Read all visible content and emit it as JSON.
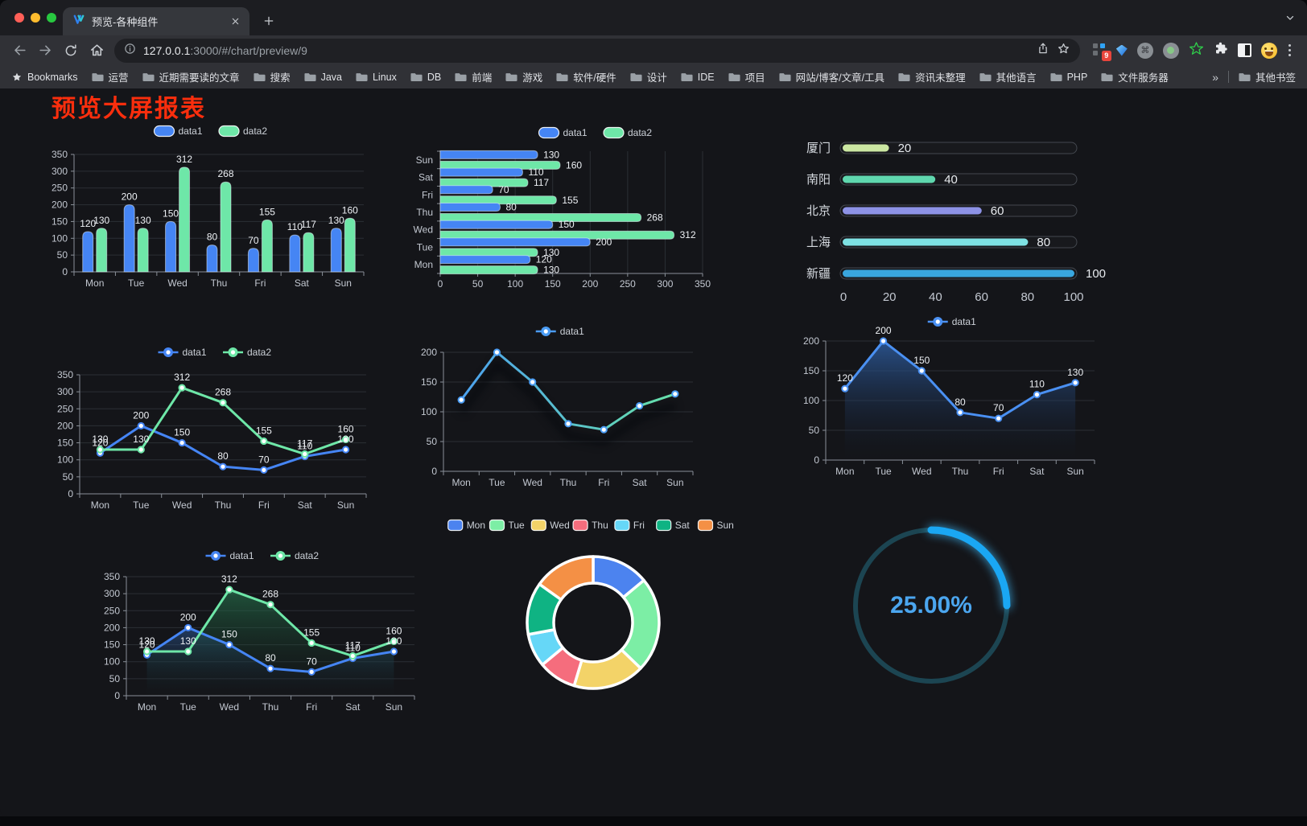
{
  "browser": {
    "tab_title": "预览-各种组件",
    "url_host": "127.0.0.1",
    "url_path": ":3000/#/chart/preview/9",
    "bookmarks_label": "Bookmarks",
    "bookmarks": [
      "运营",
      "近期需要读的文章",
      "搜索",
      "Java",
      "Linux",
      "DB",
      "前端",
      "游戏",
      "软件/硬件",
      "设计",
      "IDE",
      "项目",
      "网站/博客/文章/工具",
      "资讯未整理",
      "其他语言",
      "PHP",
      "文件服务器"
    ],
    "other_bookmarks_label": "其他书签",
    "extension_badge": "9"
  },
  "icons": {
    "overflow": "»",
    "cmd": "⌘"
  },
  "page": {
    "title": "预览大屏报表",
    "title_color": "#fa2e0d",
    "background": "#141519"
  },
  "chart_data": [
    {
      "id": "bar-vertical",
      "type": "bar",
      "categories": [
        "Mon",
        "Tue",
        "Wed",
        "Thu",
        "Fri",
        "Sat",
        "Sun"
      ],
      "series": [
        {
          "name": "data1",
          "color": "#4585f4",
          "values": [
            120,
            200,
            150,
            80,
            70,
            110,
            130
          ]
        },
        {
          "name": "data2",
          "color": "#6ee7a8",
          "values": [
            130,
            130,
            312,
            268,
            155,
            117,
            160
          ]
        }
      ],
      "ylim": [
        0,
        350
      ],
      "ytick_step": 50,
      "value_labels": true,
      "grid": true,
      "legend_position": "top"
    },
    {
      "id": "bar-horizontal",
      "type": "bar-horizontal",
      "categories": [
        "Mon",
        "Tue",
        "Wed",
        "Thu",
        "Fri",
        "Sat",
        "Sun"
      ],
      "series": [
        {
          "name": "data1",
          "color": "#4585f4",
          "values": [
            120,
            200,
            150,
            80,
            70,
            110,
            130
          ]
        },
        {
          "name": "data2",
          "color": "#6ee7a8",
          "values": [
            130,
            130,
            312,
            268,
            155,
            117,
            160
          ]
        }
      ],
      "xlim": [
        0,
        350
      ],
      "xtick_step": 50,
      "value_labels": true,
      "grid": true,
      "legend_position": "top"
    },
    {
      "id": "progress-bars",
      "type": "progress",
      "rows": [
        {
          "label": "厦门",
          "value": 20,
          "color": "#cbe7a2"
        },
        {
          "label": "南阳",
          "value": 40,
          "color": "#5fd7ae"
        },
        {
          "label": "北京",
          "value": 60,
          "color": "#8d92e6"
        },
        {
          "label": "上海",
          "value": 80,
          "color": "#7ee1e3"
        },
        {
          "label": "新疆",
          "value": 100,
          "color": "#39a6de"
        }
      ],
      "max": 100,
      "xticks": [
        0,
        20,
        40,
        60,
        80,
        100
      ]
    },
    {
      "id": "line-dual",
      "type": "line",
      "categories": [
        "Mon",
        "Tue",
        "Wed",
        "Thu",
        "Fri",
        "Sat",
        "Sun"
      ],
      "series": [
        {
          "name": "data1",
          "color": "#4585f4",
          "values": [
            120,
            200,
            150,
            80,
            70,
            110,
            130
          ]
        },
        {
          "name": "data2",
          "color": "#6ee7a8",
          "values": [
            130,
            130,
            312,
            268,
            155,
            117,
            160
          ]
        }
      ],
      "ylim": [
        0,
        350
      ],
      "ytick_step": 50,
      "value_labels": true,
      "grid": true,
      "legend_position": "top"
    },
    {
      "id": "line-gradient",
      "type": "line",
      "categories": [
        "Mon",
        "Tue",
        "Wed",
        "Thu",
        "Fri",
        "Sat",
        "Sun"
      ],
      "series": [
        {
          "name": "data1",
          "color": "#4a9cf4",
          "color_end": "#69e7a3",
          "values": [
            120,
            200,
            150,
            80,
            70,
            110,
            130
          ]
        }
      ],
      "ylim": [
        0,
        200
      ],
      "ytick_step": 50,
      "value_labels": false,
      "shadow": true,
      "grid": true,
      "legend_position": "top"
    },
    {
      "id": "area-single",
      "type": "line",
      "categories": [
        "Mon",
        "Tue",
        "Wed",
        "Thu",
        "Fri",
        "Sat",
        "Sun"
      ],
      "series": [
        {
          "name": "data1",
          "color": "#4a90f2",
          "values": [
            120,
            200,
            150,
            80,
            70,
            110,
            130
          ],
          "area": [
            "rgba(45,92,158,0.85)",
            "rgba(20,28,44,0)"
          ]
        }
      ],
      "ylim": [
        0,
        200
      ],
      "ytick_step": 50,
      "value_labels": true,
      "grid": true,
      "legend_position": "top"
    },
    {
      "id": "line-dual-area",
      "type": "line",
      "categories": [
        "Mon",
        "Tue",
        "Wed",
        "Thu",
        "Fri",
        "Sat",
        "Sun"
      ],
      "series": [
        {
          "name": "data1",
          "color": "#4585f4",
          "values": [
            120,
            200,
            150,
            80,
            70,
            110,
            130
          ],
          "area": [
            "rgba(47,98,167,0.5)",
            "rgba(20,28,44,0)"
          ]
        },
        {
          "name": "data2",
          "color": "#6ee7a8",
          "values": [
            130,
            130,
            312,
            268,
            155,
            117,
            160
          ],
          "area": [
            "rgba(40,125,82,0.6)",
            "rgba(18,40,30,0)"
          ]
        }
      ],
      "ylim": [
        0,
        350
      ],
      "ytick_step": 50,
      "value_labels": true,
      "grid": true,
      "legend_position": "top"
    },
    {
      "id": "donut",
      "type": "pie",
      "legend_position": "top",
      "items": [
        {
          "name": "Mon",
          "value": 120,
          "color": "#4c83ef"
        },
        {
          "name": "Tue",
          "value": 200,
          "color": "#7ceea5"
        },
        {
          "name": "Wed",
          "value": 150,
          "color": "#f3d368"
        },
        {
          "name": "Thu",
          "value": 80,
          "color": "#f56d7d"
        },
        {
          "name": "Fri",
          "value": 70,
          "color": "#66d7f7"
        },
        {
          "name": "Sat",
          "value": 110,
          "color": "#0fb383"
        },
        {
          "name": "Sun",
          "value": 130,
          "color": "#f49045"
        }
      ]
    },
    {
      "id": "gauge",
      "type": "gauge",
      "value": 25,
      "max": 100,
      "display": "25.00%",
      "bar_color": "#1aa7f3",
      "track_color": "#1c4552",
      "text_color": "#4ba6ef"
    }
  ]
}
